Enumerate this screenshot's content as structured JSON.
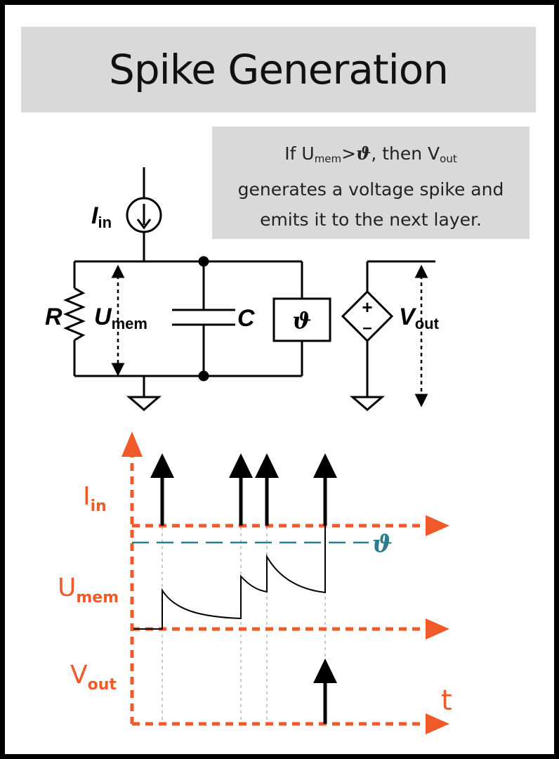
{
  "title": "Spike Generation",
  "note": {
    "line1_pre": "If U",
    "line1_sub": "mem",
    "line1_gt": ">",
    "line1_theta": "ϑ",
    "line1_post": ", then V",
    "line1_sub2": "out",
    "line2": "generates a voltage spike and",
    "line3": "emits it to the next layer."
  },
  "circuit": {
    "iin_main": "I",
    "iin_sub": "in",
    "r_label": "R",
    "umem_main": "U",
    "umem_sub": "mem",
    "c_label": "C",
    "theta_box": "ϑ",
    "plus": "+",
    "minus": "–",
    "vout_main": "V",
    "vout_sub": "out"
  },
  "timing": {
    "iin_main": "I",
    "iin_sub": "in",
    "umem_main": "U",
    "umem_sub": "mem",
    "vout_main": "V",
    "vout_sub": "out",
    "time_label": "t",
    "threshold_label": "ϑ"
  },
  "colors": {
    "axis": "#f05a28",
    "threshold": "#2b7c8c",
    "gray_box": "#d9d9d9"
  },
  "input_spike_count": 4,
  "output_spike_count": 1
}
